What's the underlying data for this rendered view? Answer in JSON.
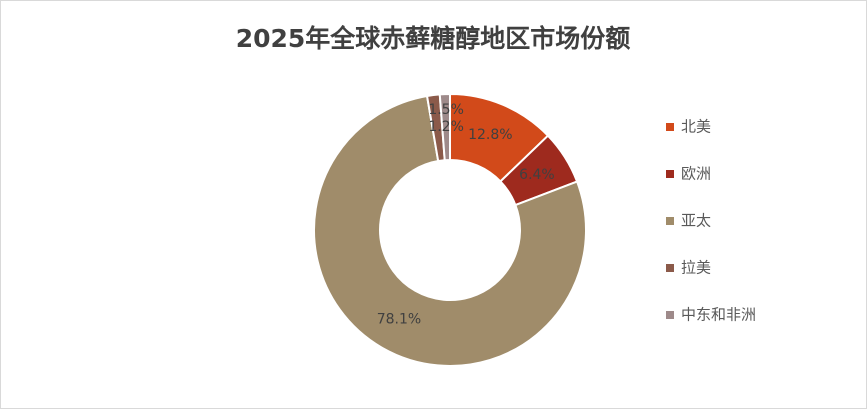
{
  "chart_data": {
    "type": "donut",
    "title": "2025年全球赤藓糖醇地区市场份额",
    "categories": [
      "北美",
      "欧洲",
      "亚太",
      "拉美",
      "中东和非洲"
    ],
    "values": [
      12.8,
      6.4,
      78.1,
      1.5,
      1.2
    ],
    "value_labels": [
      "12.8%",
      "6.4%",
      "78.1%",
      "1.5%",
      "1.2%"
    ],
    "colors": [
      "#d24a1a",
      "#9e2a1e",
      "#a08c6a",
      "#8b5a4a",
      "#9e8a8a"
    ],
    "legend": "right"
  }
}
